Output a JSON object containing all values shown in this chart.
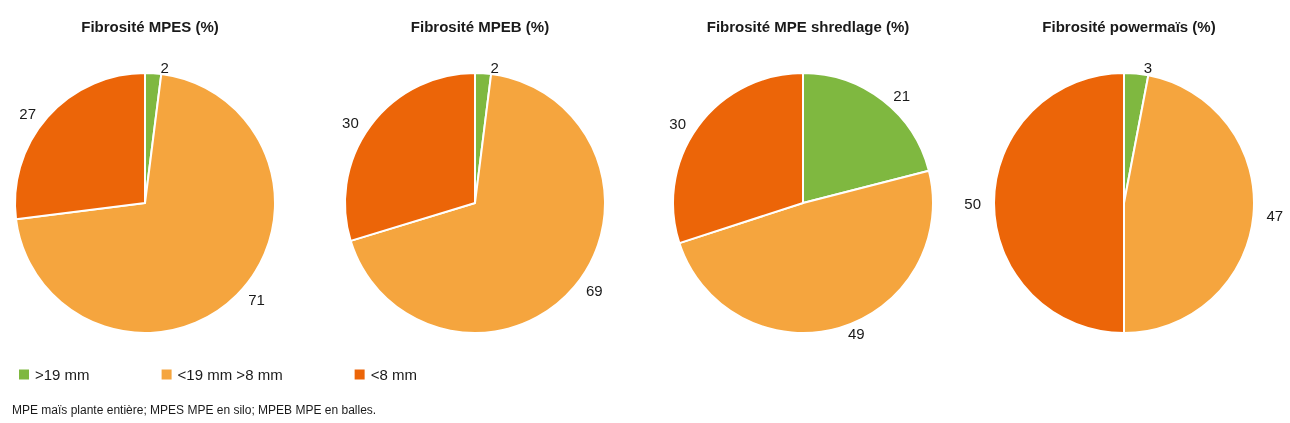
{
  "chart_data": [
    {
      "type": "pie",
      "title": "Fibrosité MPES (%)",
      "categories": [
        ">19 mm",
        "<19 mm >8 mm",
        "<8 mm"
      ],
      "values": [
        2,
        71,
        27
      ],
      "colors": [
        "#7fb840",
        "#f5a53e",
        "#ec6508"
      ],
      "data_labels": true,
      "legend": "bottom",
      "annotations": [
        "MPE maïs plante entière; MPES MPE en silo; MPEB MPE en balles."
      ]
    },
    {
      "type": "pie",
      "title": "Fibrosité MPEB (%)",
      "categories": [
        null,
        null,
        null
      ],
      "values": [
        2,
        69,
        30
      ],
      "colors": [
        "#7fb840",
        "#f5a53e",
        "#ec6508"
      ],
      "data_labels": true
    },
    {
      "type": "pie",
      "title": "Fibrosité MPE shredlage (%)",
      "categories": [
        null,
        null,
        null
      ],
      "values": [
        21,
        49,
        30
      ],
      "colors": [
        "#7fb840",
        "#f5a53e",
        "#ec6508"
      ],
      "data_labels": true
    },
    {
      "type": "pie",
      "title": "Fibrosité powermaïs (%)",
      "categories": [
        null,
        null,
        null
      ],
      "values": [
        3,
        47,
        50
      ],
      "colors": [
        "#7fb840",
        "#f5a53e",
        "#ec6508"
      ],
      "data_labels": true
    }
  ]
}
